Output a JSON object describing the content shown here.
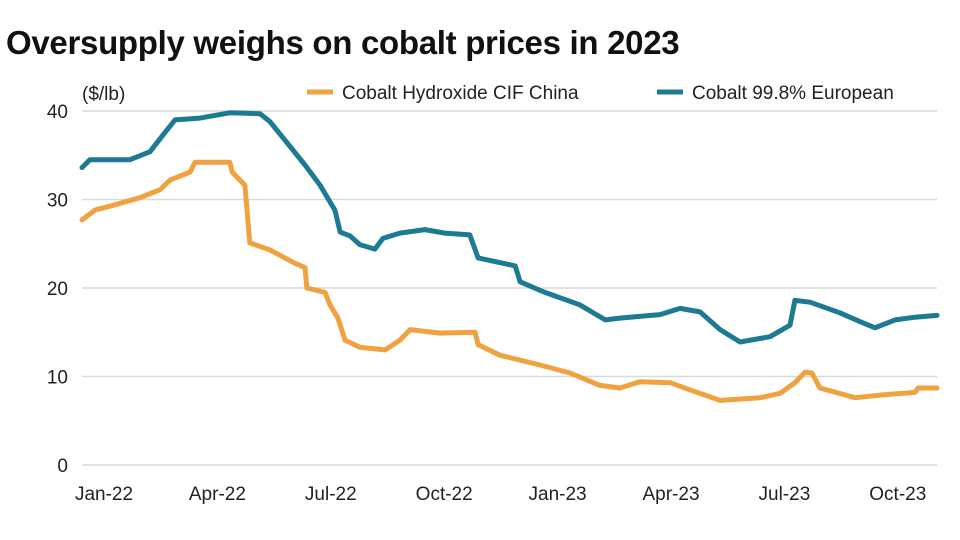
{
  "chart_data": {
    "type": "line",
    "title": "Oversupply weighs on cobalt prices in 2023",
    "ylabel": "($/lb)",
    "xlabel": "",
    "ylim": [
      0,
      40
    ],
    "yticks": [
      0,
      10,
      20,
      30,
      40
    ],
    "x_unit": "months since Jan-2022",
    "xlim": [
      0,
      22.6
    ],
    "xticks": [
      {
        "x": 0,
        "label": "Jan-22"
      },
      {
        "x": 3,
        "label": "Apr-22"
      },
      {
        "x": 6,
        "label": "Jul-22"
      },
      {
        "x": 9,
        "label": "Oct-22"
      },
      {
        "x": 12,
        "label": "Jan-23"
      },
      {
        "x": 15,
        "label": "Apr-23"
      },
      {
        "x": 18,
        "label": "Jul-23"
      },
      {
        "x": 21,
        "label": "Oct-23"
      }
    ],
    "grid": "horizontal",
    "legend": "top-right",
    "series": [
      {
        "name": "Cobalt Hydroxide CIF China",
        "color": "#f0a240",
        "x": [
          0,
          0.34,
          0.87,
          1.53,
          2.06,
          2.33,
          2.86,
          2.99,
          3.91,
          3.97,
          4.31,
          4.44,
          4.97,
          5.63,
          5.9,
          5.95,
          6.43,
          6.56,
          6.77,
          6.96,
          7.35,
          8.02,
          8.41,
          8.68,
          9.47,
          10.4,
          10.48,
          11.06,
          12.12,
          12.91,
          13.7,
          14.23,
          14.76,
          15.56,
          16.08,
          16.88,
          17.94,
          18.47,
          18.86,
          19.13,
          19.31,
          19.52,
          20.45,
          21.11,
          22.04,
          22.12,
          22.62
        ],
        "values": [
          27.7,
          28.8,
          29.4,
          30.2,
          31.1,
          32.2,
          33.1,
          34.2,
          34.2,
          33.1,
          31.6,
          25.1,
          24.3,
          22.8,
          22.3,
          20.0,
          19.5,
          18.1,
          16.6,
          14.1,
          13.3,
          13.0,
          14.1,
          15.3,
          14.9,
          15.0,
          13.6,
          12.4,
          11.3,
          10.4,
          9.0,
          8.7,
          9.4,
          9.3,
          8.5,
          7.3,
          7.6,
          8.1,
          9.3,
          10.5,
          10.4,
          8.7,
          7.6,
          7.9,
          8.2,
          8.7,
          8.7
        ]
      },
      {
        "name": "Cobalt 99.8% European",
        "color": "#1d7a93",
        "x": [
          0,
          0.21,
          1.27,
          1.8,
          2.2,
          2.46,
          3.12,
          3.91,
          4.71,
          4.97,
          5.37,
          5.9,
          6.3,
          6.69,
          6.83,
          7.09,
          7.35,
          7.75,
          7.96,
          8.41,
          9.07,
          9.6,
          10.26,
          10.48,
          11.46,
          11.59,
          12.25,
          13.17,
          13.84,
          14.23,
          15.29,
          15.82,
          16.35,
          16.88,
          17.41,
          18.2,
          18.73,
          18.86,
          19.26,
          20.05,
          20.58,
          20.98,
          21.51,
          22.04,
          22.62
        ],
        "values": [
          33.6,
          34.5,
          34.5,
          35.4,
          37.6,
          39.0,
          39.2,
          39.8,
          39.7,
          38.8,
          36.7,
          33.9,
          31.6,
          28.8,
          26.3,
          25.9,
          24.9,
          24.4,
          25.6,
          26.2,
          26.6,
          26.2,
          26.0,
          23.4,
          22.5,
          20.7,
          19.5,
          18.1,
          16.4,
          16.6,
          17.0,
          17.7,
          17.3,
          15.3,
          13.9,
          14.5,
          15.8,
          18.6,
          18.4,
          17.2,
          16.2,
          15.5,
          16.4,
          16.7,
          16.9
        ]
      }
    ]
  }
}
